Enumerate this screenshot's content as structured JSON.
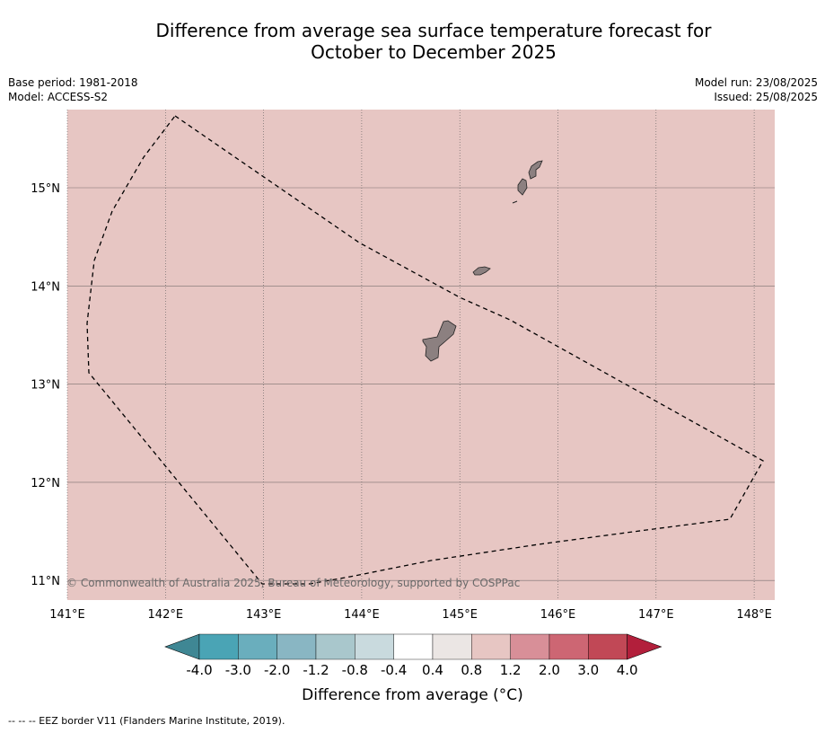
{
  "title": {
    "line1": "Difference from average sea surface temperature forecast for",
    "line2": "October to December 2025"
  },
  "meta": {
    "base_period": "Base period: 1981-2018",
    "model": "Model: ACCESS-S2",
    "model_run": "Model run: 23/08/2025",
    "issued": "Issued: 25/08/2025"
  },
  "map": {
    "background_color": "#e7c6c3",
    "land_color": "#8c8080",
    "x_ticks": [
      "141°E",
      "142°E",
      "143°E",
      "144°E",
      "145°E",
      "146°E",
      "147°E",
      "148°E"
    ],
    "y_ticks": [
      "15°N",
      "14°N",
      "13°N",
      "12°N",
      "11°N"
    ],
    "copyright": "© Commonwealth of Australia 2025, Bureau of Meteorology, supported by COSPPac"
  },
  "colorbar": {
    "label": "Difference from average (°C)",
    "ticks": [
      "-4.0",
      "-3.0",
      "-2.0",
      "-1.2",
      "-0.8",
      "-0.4",
      "0.4",
      "0.8",
      "1.2",
      "2.0",
      "3.0",
      "4.0"
    ],
    "colors": [
      "#3f8794",
      "#4aa4b5",
      "#6aaebd",
      "#89b6c3",
      "#a9c7cc",
      "#c9dade",
      "#ffffff",
      "#ebe6e4",
      "#e7c6c3",
      "#d88f98",
      "#cd6673",
      "#c14856",
      "#b21f3b"
    ]
  },
  "footnote": "-- -- -- EEZ border V11 (Flanders Marine Institute, 2019)."
}
